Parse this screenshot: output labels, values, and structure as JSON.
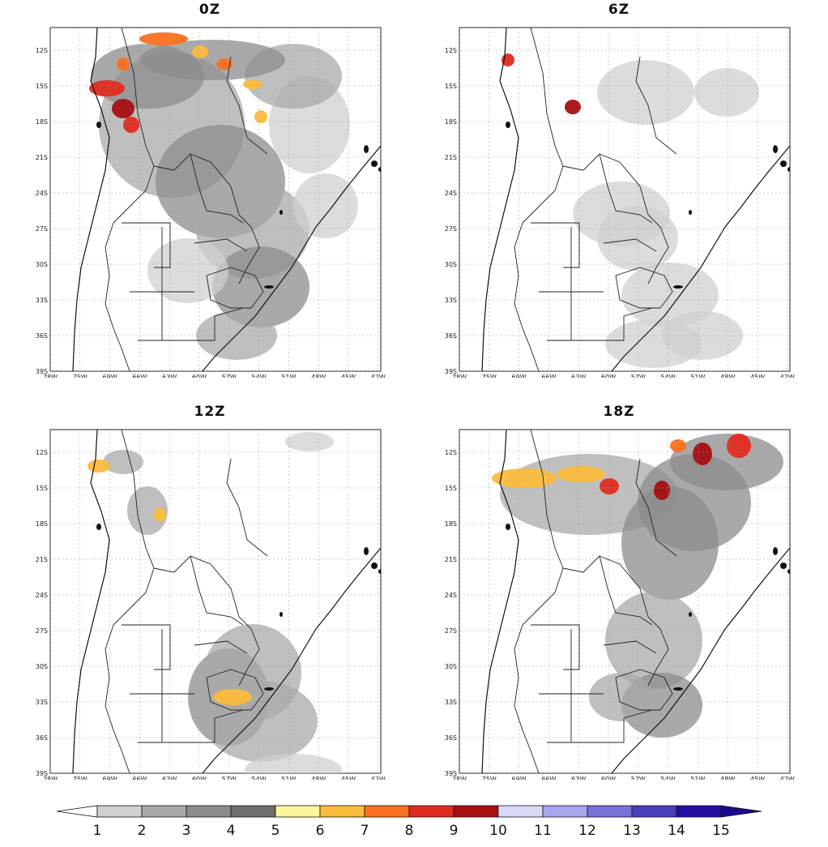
{
  "panels": [
    {
      "title": "0Z"
    },
    {
      "title": "6Z"
    },
    {
      "title": "12Z"
    },
    {
      "title": "18Z"
    }
  ],
  "lat_ticks": [
    "12S",
    "15S",
    "18S",
    "21S",
    "24S",
    "27S",
    "30S",
    "33S",
    "36S",
    "39S"
  ],
  "lon_ticks": [
    "78W",
    "75W",
    "69W",
    "66W",
    "63W",
    "60W",
    "57W",
    "54W",
    "51W",
    "48W",
    "45W",
    "42W"
  ],
  "colorbar": {
    "values": [
      "1",
      "2",
      "3",
      "4",
      "5",
      "6",
      "7",
      "8",
      "9",
      "10",
      "11",
      "12",
      "13",
      "14",
      "15"
    ],
    "colors": [
      "#ffffff",
      "#d0d0d0",
      "#a9a9a9",
      "#8c8c8c",
      "#6e6e6e",
      "#fdf59a",
      "#fbbc3c",
      "#f97020",
      "#e02b20",
      "#a60f12",
      "#d8d8f7",
      "#a8a6ef",
      "#7771d8",
      "#4a3fb8",
      "#2510a0"
    ]
  },
  "legend": {
    "type": "categorical-colorbar",
    "extend": "both"
  }
}
